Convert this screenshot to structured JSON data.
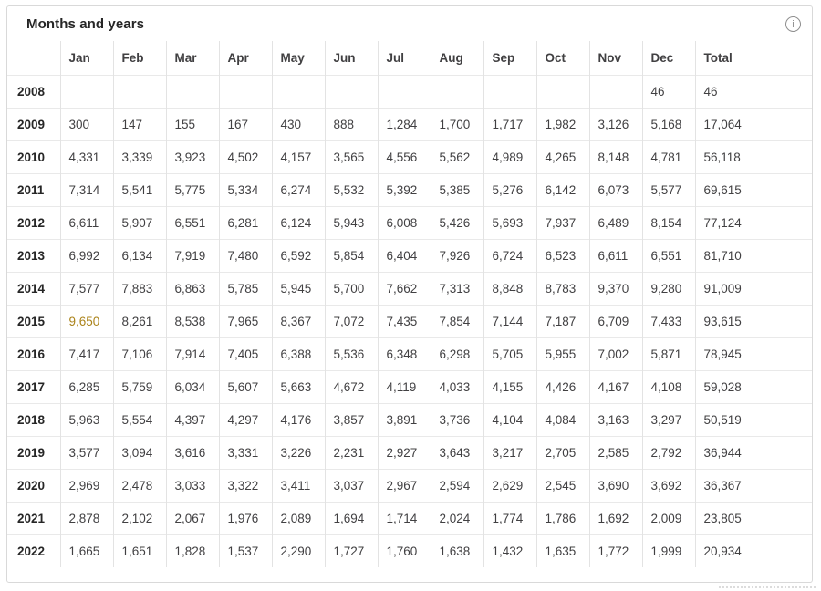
{
  "header": {
    "title": "Months and years",
    "info_icon": "info-circle"
  },
  "chart_data": {
    "type": "table",
    "title": "Months and years",
    "columns": [
      "Jan",
      "Feb",
      "Mar",
      "Apr",
      "May",
      "Jun",
      "Jul",
      "Aug",
      "Sep",
      "Oct",
      "Nov",
      "Dec",
      "Total"
    ],
    "rows": [
      {
        "year": "2008",
        "values": [
          "",
          "",
          "",
          "",
          "",
          "",
          "",
          "",
          "",
          "",
          "",
          "46",
          "46"
        ]
      },
      {
        "year": "2009",
        "values": [
          "300",
          "147",
          "155",
          "167",
          "430",
          "888",
          "1,284",
          "1,700",
          "1,717",
          "1,982",
          "3,126",
          "5,168",
          "17,064"
        ]
      },
      {
        "year": "2010",
        "values": [
          "4,331",
          "3,339",
          "3,923",
          "4,502",
          "4,157",
          "3,565",
          "4,556",
          "5,562",
          "4,989",
          "4,265",
          "8,148",
          "4,781",
          "56,118"
        ]
      },
      {
        "year": "2011",
        "values": [
          "7,314",
          "5,541",
          "5,775",
          "5,334",
          "6,274",
          "5,532",
          "5,392",
          "5,385",
          "5,276",
          "6,142",
          "6,073",
          "5,577",
          "69,615"
        ]
      },
      {
        "year": "2012",
        "values": [
          "6,611",
          "5,907",
          "6,551",
          "6,281",
          "6,124",
          "5,943",
          "6,008",
          "5,426",
          "5,693",
          "7,937",
          "6,489",
          "8,154",
          "77,124"
        ]
      },
      {
        "year": "2013",
        "values": [
          "6,992",
          "6,134",
          "7,919",
          "7,480",
          "6,592",
          "5,854",
          "6,404",
          "7,926",
          "6,724",
          "6,523",
          "6,611",
          "6,551",
          "81,710"
        ]
      },
      {
        "year": "2014",
        "values": [
          "7,577",
          "7,883",
          "6,863",
          "5,785",
          "5,945",
          "5,700",
          "7,662",
          "7,313",
          "8,848",
          "8,783",
          "9,370",
          "9,280",
          "91,009"
        ]
      },
      {
        "year": "2015",
        "values": [
          "9,650",
          "8,261",
          "8,538",
          "7,965",
          "8,367",
          "7,072",
          "7,435",
          "7,854",
          "7,144",
          "7,187",
          "6,709",
          "7,433",
          "93,615"
        ]
      },
      {
        "year": "2016",
        "values": [
          "7,417",
          "7,106",
          "7,914",
          "7,405",
          "6,388",
          "5,536",
          "6,348",
          "6,298",
          "5,705",
          "5,955",
          "7,002",
          "5,871",
          "78,945"
        ]
      },
      {
        "year": "2017",
        "values": [
          "6,285",
          "5,759",
          "6,034",
          "5,607",
          "5,663",
          "4,672",
          "4,119",
          "4,033",
          "4,155",
          "4,426",
          "4,167",
          "4,108",
          "59,028"
        ]
      },
      {
        "year": "2018",
        "values": [
          "5,963",
          "5,554",
          "4,397",
          "4,297",
          "4,176",
          "3,857",
          "3,891",
          "3,736",
          "4,104",
          "4,084",
          "3,163",
          "3,297",
          "50,519"
        ]
      },
      {
        "year": "2019",
        "values": [
          "3,577",
          "3,094",
          "3,616",
          "3,331",
          "3,226",
          "2,231",
          "2,927",
          "3,643",
          "3,217",
          "2,705",
          "2,585",
          "2,792",
          "36,944"
        ]
      },
      {
        "year": "2020",
        "values": [
          "2,969",
          "2,478",
          "3,033",
          "3,322",
          "3,411",
          "3,037",
          "2,967",
          "2,594",
          "2,629",
          "2,545",
          "3,690",
          "3,692",
          "36,367"
        ]
      },
      {
        "year": "2021",
        "values": [
          "2,878",
          "2,102",
          "2,067",
          "1,976",
          "2,089",
          "1,694",
          "1,714",
          "2,024",
          "1,774",
          "1,786",
          "1,692",
          "2,009",
          "23,805"
        ]
      },
      {
        "year": "2022",
        "values": [
          "1,665",
          "1,651",
          "1,828",
          "1,537",
          "2,290",
          "1,727",
          "1,760",
          "1,638",
          "1,432",
          "1,635",
          "1,772",
          "1,999",
          "20,934"
        ]
      }
    ],
    "highlight": {
      "row": "2015",
      "column": "Jan",
      "value": "9,650",
      "color": "#ab831a"
    },
    "layout": {
      "grid": true,
      "legend": "none"
    }
  },
  "colors": {
    "grid_vertical": "#e3e3e3",
    "grid_horizontal": "#e9e9e9",
    "card_border": "#d9d9d9",
    "text": "#414042",
    "year_text": "#262626",
    "highlight_text": "#ab831a"
  }
}
